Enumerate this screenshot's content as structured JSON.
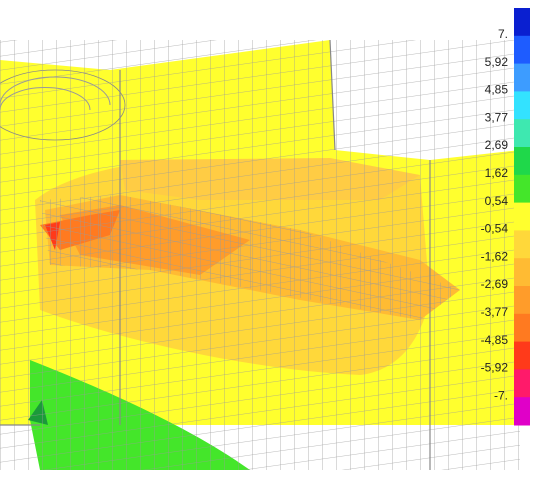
{
  "legend": {
    "labels": [
      "7.",
      "5,92",
      "4,85",
      "3,77",
      "2,69",
      "1,62",
      "0,54",
      "-0,54",
      "-1,62",
      "-2,69",
      "-3,77",
      "-4,85",
      "-5,92",
      "-7."
    ],
    "colors": [
      "#0a1fd0",
      "#1e5cff",
      "#3d9cff",
      "#33e2ff",
      "#3ee8b0",
      "#1fd84a",
      "#44e62a",
      "#ffff2e",
      "#ffd83a",
      "#ffbb33",
      "#ff9c2a",
      "#ff7a20",
      "#ff3a1a",
      "#ff1a6a",
      "#e000c8"
    ]
  }
}
